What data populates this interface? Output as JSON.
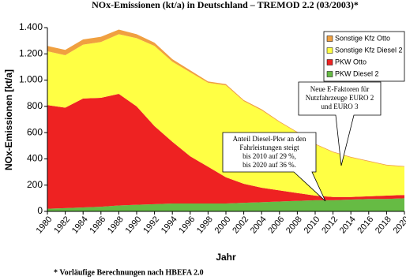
{
  "chart_data": {
    "type": "stacked-area",
    "title": "NOx-Emissionen (kt/a) in Deutschland – TREMOD 2.2 (03/2003)*",
    "y_label": "NOx-Emissionen [kt/a]",
    "x_label": "Jahr",
    "footnote": "* Vorläufige Berechnungen nach HBEFA 2.0",
    "x": [
      1980,
      1982,
      1984,
      1986,
      1988,
      1990,
      1992,
      1994,
      1996,
      1998,
      2000,
      2002,
      2004,
      2006,
      2008,
      2010,
      2012,
      2014,
      2016,
      2018,
      2020
    ],
    "series": [
      {
        "name": "PKW Diesel 2",
        "color": "#66bb44",
        "values": [
          20,
          25,
          30,
          35,
          45,
          50,
          55,
          60,
          60,
          60,
          60,
          65,
          70,
          75,
          80,
          85,
          85,
          90,
          95,
          95,
          100
        ]
      },
      {
        "name": "PKW Otto",
        "color": "#ee2222",
        "values": [
          790,
          765,
          830,
          830,
          850,
          750,
          595,
          470,
          360,
          280,
          200,
          145,
          110,
          85,
          60,
          35,
          25,
          20,
          20,
          25,
          25
        ]
      },
      {
        "name": "Sonstige Kfz Diesel 2",
        "color": "#ffff44",
        "values": [
          410,
          400,
          410,
          425,
          455,
          520,
          610,
          610,
          640,
          640,
          700,
          630,
          590,
          520,
          460,
          390,
          340,
          300,
          265,
          230,
          215
        ]
      },
      {
        "name": "Sonstige Kfz Otto",
        "color": "#f0a040",
        "values": [
          40,
          40,
          40,
          40,
          35,
          30,
          25,
          20,
          15,
          10,
          10,
          8,
          8,
          6,
          5,
          5,
          5,
          5,
          5,
          5,
          5
        ]
      }
    ],
    "xlim": [
      1980,
      2020
    ],
    "xticks": [
      1980,
      1982,
      1984,
      1986,
      1988,
      1990,
      1992,
      1994,
      1996,
      1998,
      2000,
      2002,
      2004,
      2006,
      2008,
      2010,
      2012,
      2014,
      2016,
      2018,
      2020
    ],
    "ylim": [
      0,
      1400
    ],
    "yticks": [
      0,
      200,
      400,
      600,
      800,
      {
        "value": 1000,
        "label": "1.000"
      },
      {
        "value": 1200,
        "label": "1.200"
      },
      {
        "value": 1400,
        "label": "1.400"
      }
    ],
    "legend": "top-right",
    "annotations": [
      {
        "lines": [
          "Neue E-Faktoren für",
          "Nutzfahrzeuge EURO 2",
          "und  EURO 3"
        ]
      },
      {
        "lines": [
          "Anteil Diesel-Pkw an den",
          "Fahrleistungen steigt",
          "bis 2010 auf 29 %,",
          "bis 2020 auf 36 %."
        ]
      }
    ]
  }
}
